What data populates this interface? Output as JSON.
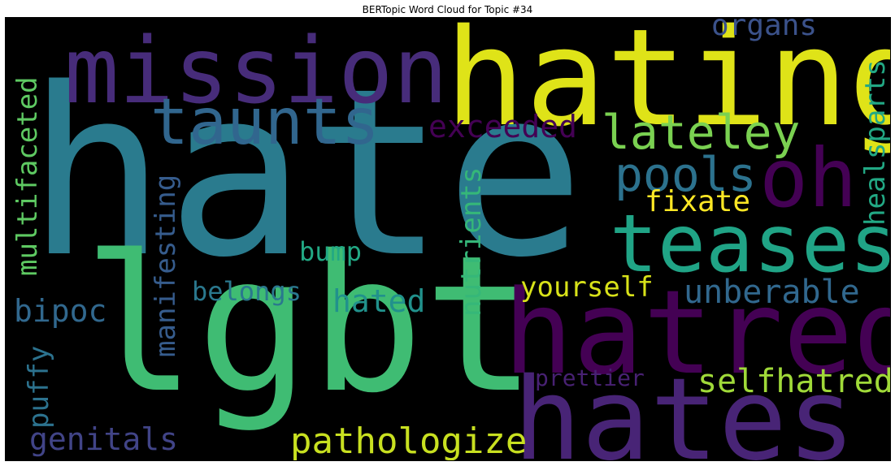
{
  "title": "BERTopic Word Cloud for Topic #34",
  "words": [
    {
      "text": "hate",
      "color": "#2a7b8e"
    },
    {
      "text": "lgbt",
      "color": "#3fbc73"
    },
    {
      "text": "hating",
      "color": "#dfe318"
    },
    {
      "text": "mission",
      "color": "#472c7a"
    },
    {
      "text": "hatred",
      "color": "#440154"
    },
    {
      "text": "hates",
      "color": "#482476"
    },
    {
      "text": "teases",
      "color": "#20a486"
    },
    {
      "text": "oh",
      "color": "#440154"
    },
    {
      "text": "taunts",
      "color": "#31668e"
    },
    {
      "text": "lateley",
      "color": "#7ad151"
    },
    {
      "text": "pools",
      "color": "#2c728e"
    },
    {
      "text": "selfhatred",
      "color": "#a0da39"
    },
    {
      "text": "pathologize",
      "color": "#c8e020"
    },
    {
      "text": "unberable",
      "color": "#31688e"
    },
    {
      "text": "exceeded",
      "color": "#440154"
    },
    {
      "text": "organs",
      "color": "#3b528b"
    },
    {
      "text": "fixate",
      "color": "#fde725"
    },
    {
      "text": "yourself",
      "color": "#d8e219"
    },
    {
      "text": "prettier",
      "color": "#482173"
    },
    {
      "text": "genitals",
      "color": "#414487"
    },
    {
      "text": "belongs",
      "color": "#2a788e"
    },
    {
      "text": "hated",
      "color": "#21918c"
    },
    {
      "text": "bipoc",
      "color": "#31688e"
    },
    {
      "text": "bump",
      "color": "#22a884"
    },
    {
      "text": "multifaceted",
      "color": "#5ec962"
    },
    {
      "text": "manifesting",
      "color": "#365c8d"
    },
    {
      "text": "puffy",
      "color": "#2c728e"
    },
    {
      "text": "nutrients",
      "color": "#35b779"
    },
    {
      "text": "healsparts",
      "color": "#22a884"
    }
  ]
}
